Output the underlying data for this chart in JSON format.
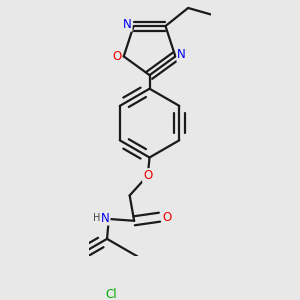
{
  "background_color": "#e8e8e8",
  "bond_color": "#1a1a1a",
  "bond_width": 1.6,
  "atom_colors": {
    "N": "#0000ee",
    "O": "#ee0000",
    "Cl": "#00aa00",
    "H": "#444444"
  },
  "font_size_atom": 8.5,
  "font_size_small": 7.0,
  "dbo": 0.05
}
